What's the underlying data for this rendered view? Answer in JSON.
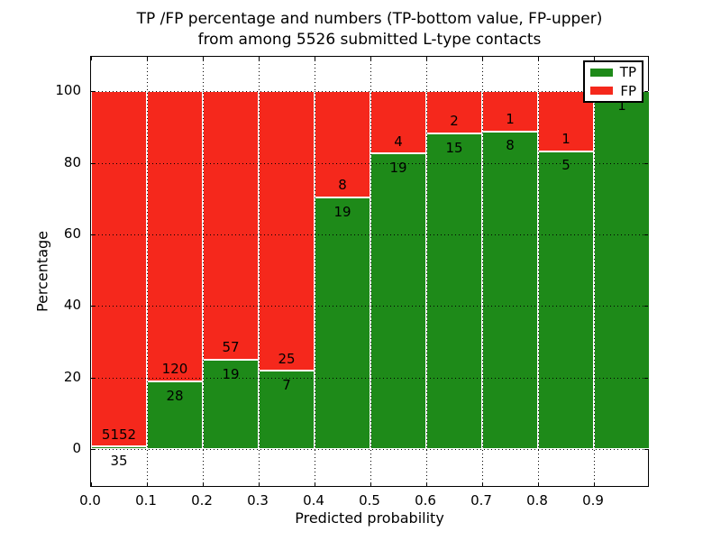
{
  "title": {
    "line1": "TP /FP percentage and numbers (TP-bottom value, FP-upper)",
    "line2": "from among 5526 submitted L-type contacts"
  },
  "axes": {
    "xlabel": "Predicted probability",
    "ylabel": "Percentage",
    "x_tick_labels": [
      "0.0",
      "0.1",
      "0.2",
      "0.3",
      "0.4",
      "0.5",
      "0.6",
      "0.7",
      "0.8",
      "0.9"
    ],
    "y_tick_labels": [
      "0",
      "20",
      "40",
      "60",
      "80",
      "100"
    ]
  },
  "legend": {
    "items": [
      {
        "label": "TP",
        "color": "#1e8a19"
      },
      {
        "label": "FP",
        "color": "#f5281c"
      }
    ]
  },
  "chart_data": {
    "type": "bar",
    "stacked": true,
    "normalized_to_percent": true,
    "title": "TP /FP percentage and numbers (TP-bottom value, FP-upper) from among 5526 submitted L-type contacts",
    "xlabel": "Predicted probability",
    "ylabel": "Percentage",
    "total_contacts": 5526,
    "bin_width": 0.1,
    "categories": [
      "0.0-0.1",
      "0.1-0.2",
      "0.2-0.3",
      "0.3-0.4",
      "0.4-0.5",
      "0.5-0.6",
      "0.6-0.7",
      "0.7-0.8",
      "0.8-0.9",
      "0.9-1.0"
    ],
    "series": [
      {
        "name": "TP",
        "color": "#1e8a19",
        "counts": [
          35,
          28,
          19,
          7,
          19,
          19,
          15,
          8,
          5,
          1
        ]
      },
      {
        "name": "FP",
        "color": "#f5281c",
        "counts": [
          5152,
          120,
          57,
          25,
          8,
          4,
          2,
          1,
          1,
          0
        ]
      }
    ],
    "tp_percent": [
      0.7,
      18.9,
      25.0,
      21.9,
      70.4,
      82.6,
      88.2,
      88.9,
      83.3,
      100.0
    ],
    "xlim": [
      0.0,
      1.0
    ],
    "ylim": [
      -10.8,
      109.7
    ],
    "y_gridlines": [
      0,
      20,
      40,
      60,
      80,
      100
    ],
    "x_gridlines": [
      0.1,
      0.2,
      0.3,
      0.4,
      0.5,
      0.6,
      0.7,
      0.8,
      0.9
    ],
    "grid_style": "dotted",
    "legend_position": "upper right"
  }
}
